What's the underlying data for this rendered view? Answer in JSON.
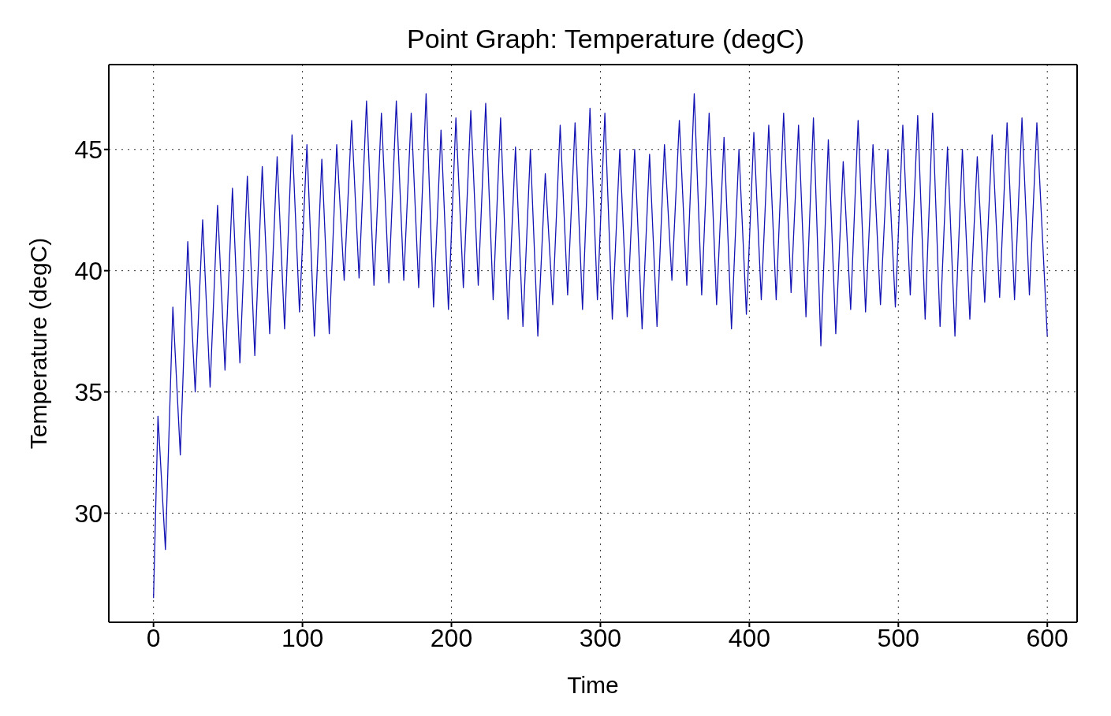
{
  "chart_data": {
    "type": "line",
    "title": "Point Graph: Temperature (degC)",
    "xlabel": "Time",
    "ylabel": "Temperature (degC)",
    "x": [
      0,
      3,
      8,
      13,
      18,
      23,
      28,
      33,
      38,
      43,
      48,
      53,
      58,
      63,
      68,
      73,
      78,
      83,
      88,
      93,
      98,
      103,
      108,
      113,
      118,
      123,
      128,
      133,
      138,
      143,
      148,
      153,
      158,
      163,
      168,
      173,
      178,
      183,
      188,
      193,
      198,
      203,
      208,
      213,
      218,
      223,
      228,
      233,
      238,
      243,
      248,
      253,
      258,
      263,
      268,
      273,
      278,
      283,
      288,
      293,
      298,
      303,
      308,
      313,
      318,
      323,
      328,
      333,
      338,
      343,
      348,
      353,
      358,
      363,
      368,
      373,
      378,
      383,
      388,
      393,
      398,
      403,
      408,
      413,
      418,
      423,
      428,
      433,
      438,
      443,
      448,
      453,
      458,
      463,
      468,
      473,
      478,
      483,
      488,
      493,
      498,
      503,
      508,
      513,
      518,
      523,
      528,
      533,
      538,
      543,
      548,
      553,
      558,
      563,
      568,
      573,
      578,
      583,
      588,
      593,
      600
    ],
    "series": [
      {
        "color": "#1414b4",
        "values": [
          26.5,
          34,
          28.5,
          38.5,
          32.4,
          41.2,
          35.0,
          42.1,
          35.2,
          42.7,
          35.9,
          43.4,
          36.2,
          43.9,
          36.5,
          44.3,
          37.4,
          44.7,
          37.6,
          45.6,
          38.3,
          45.2,
          37.3,
          44.6,
          37.4,
          45.2,
          39.6,
          46.2,
          39.7,
          47.0,
          39.4,
          46.5,
          39.5,
          47.0,
          39.6,
          46.5,
          39.3,
          47.3,
          38.5,
          45.8,
          38.4,
          46.3,
          39.3,
          46.6,
          39.4,
          46.9,
          38.8,
          46.3,
          38.0,
          45.1,
          37.7,
          45.0,
          37.3,
          44.0,
          38.6,
          46.0,
          39.0,
          46.1,
          38.4,
          46.7,
          38.8,
          46.5,
          38.0,
          45.0,
          38.1,
          45.0,
          37.6,
          44.8,
          37.7,
          45.2,
          39.6,
          46.2,
          39.4,
          47.3,
          39.0,
          46.5,
          38.6,
          45.5,
          37.6,
          45.0,
          38.2,
          45.7,
          38.8,
          46.0,
          38.8,
          46.5,
          39.1,
          46.0,
          38.1,
          46.3,
          36.9,
          45.4,
          37.4,
          44.5,
          38.4,
          46.2,
          38.3,
          45.2,
          38.6,
          45.0,
          38.5,
          46.0,
          39.0,
          46.4,
          38.0,
          46.5,
          37.7,
          45.1,
          37.3,
          45.0,
          38.0,
          44.7,
          38.7,
          45.6,
          38.9,
          46.1,
          38.8,
          46.3,
          39.0,
          46.1,
          37.3
        ]
      }
    ],
    "xlim": [
      -30,
      620
    ],
    "xticks": [
      0,
      100,
      200,
      300,
      400,
      500,
      600
    ],
    "ylim": [
      25.5,
      48.5
    ],
    "yticks": [
      30,
      35,
      40,
      45
    ],
    "grid": true,
    "legend": false,
    "marker": "none",
    "line_style": "solid"
  }
}
